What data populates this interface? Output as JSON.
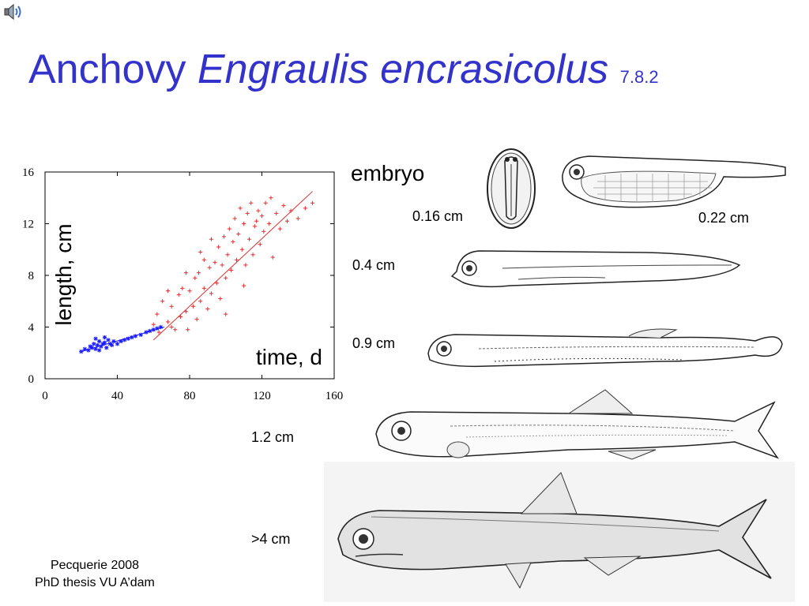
{
  "slide": {
    "title_common": "Anchovy",
    "title_scientific": "Engraulis encrasicolus",
    "slide_number": "7.8.2",
    "credit_line1": "Pecquerie 2008",
    "credit_line2": "PhD thesis VU A’dam"
  },
  "stages": {
    "embryo": "embryo",
    "egg_size": "0.16 cm",
    "larva_size": "0.22 cm",
    "s1": "0.4 cm",
    "s2": "0.9 cm",
    "s3": "1.2 cm",
    "adult": ">4 cm"
  },
  "colors": {
    "title": "#3333cc",
    "early": "#1a1aff",
    "late": "#e03030"
  },
  "icons": {
    "speaker": "speaker-icon"
  },
  "chart_data": {
    "type": "scatter",
    "title": "",
    "xlabel": "time, d",
    "ylabel": "length, cm",
    "xlim": [
      0,
      160
    ],
    "ylim": [
      0,
      16
    ],
    "xticks": [
      0,
      40,
      80,
      120,
      160
    ],
    "yticks": [
      0,
      4,
      8,
      12,
      16
    ],
    "grid": false,
    "series": [
      {
        "marker": "star",
        "color": "#1a1aff",
        "points": [
          [
            20,
            2.1
          ],
          [
            22,
            2.3
          ],
          [
            24,
            2.2
          ],
          [
            25,
            2.5
          ],
          [
            26,
            2.4
          ],
          [
            27,
            2.7
          ],
          [
            28,
            2.3
          ],
          [
            29,
            2.6
          ],
          [
            30,
            2.9
          ],
          [
            31,
            2.5
          ],
          [
            32,
            2.7
          ],
          [
            33,
            2.8
          ],
          [
            34,
            2.4
          ],
          [
            35,
            3.0
          ],
          [
            36,
            2.7
          ],
          [
            37,
            2.6
          ],
          [
            38,
            2.9
          ],
          [
            40,
            2.7
          ],
          [
            42,
            2.9
          ],
          [
            44,
            3.0
          ],
          [
            46,
            3.1
          ],
          [
            48,
            3.2
          ],
          [
            50,
            3.3
          ],
          [
            53,
            3.4
          ],
          [
            56,
            3.6
          ],
          [
            58,
            3.7
          ],
          [
            60,
            3.8
          ],
          [
            62,
            3.9
          ],
          [
            64,
            4.0
          ],
          [
            30,
            2.2
          ],
          [
            28,
            3.1
          ],
          [
            33,
            3.2
          ]
        ],
        "fit": [
          [
            20,
            2.1
          ],
          [
            66,
            4.0
          ]
        ]
      },
      {
        "marker": "plus",
        "color": "#e03030",
        "points": [
          [
            60,
            4.2
          ],
          [
            62,
            5.0
          ],
          [
            63,
            3.6
          ],
          [
            65,
            6.0
          ],
          [
            68,
            4.4
          ],
          [
            70,
            4.0
          ],
          [
            70,
            5.6
          ],
          [
            72,
            3.8
          ],
          [
            74,
            6.5
          ],
          [
            75,
            4.8
          ],
          [
            76,
            7.0
          ],
          [
            78,
            5.2
          ],
          [
            79,
            3.8
          ],
          [
            80,
            6.8
          ],
          [
            82,
            5.6
          ],
          [
            83,
            7.8
          ],
          [
            84,
            4.6
          ],
          [
            85,
            8.2
          ],
          [
            86,
            6.0
          ],
          [
            88,
            7.0
          ],
          [
            88,
            9.2
          ],
          [
            90,
            5.4
          ],
          [
            91,
            8.6
          ],
          [
            92,
            6.6
          ],
          [
            94,
            9.0
          ],
          [
            95,
            7.4
          ],
          [
            96,
            10.2
          ],
          [
            97,
            6.2
          ],
          [
            98,
            8.8
          ],
          [
            99,
            11.0
          ],
          [
            100,
            7.8
          ],
          [
            101,
            9.6
          ],
          [
            102,
            11.6
          ],
          [
            103,
            8.4
          ],
          [
            104,
            10.6
          ],
          [
            105,
            12.4
          ],
          [
            106,
            9.2
          ],
          [
            107,
            11.2
          ],
          [
            108,
            13.2
          ],
          [
            109,
            10.0
          ],
          [
            110,
            12.0
          ],
          [
            111,
            8.8
          ],
          [
            112,
            12.8
          ],
          [
            113,
            10.8
          ],
          [
            114,
            13.6
          ],
          [
            115,
            9.6
          ],
          [
            116,
            11.8
          ],
          [
            117,
            12.2
          ],
          [
            118,
            13.0
          ],
          [
            119,
            10.4
          ],
          [
            120,
            12.6
          ],
          [
            121,
            11.4
          ],
          [
            122,
            13.6
          ],
          [
            124,
            12.0
          ],
          [
            125,
            14.0
          ],
          [
            126,
            9.4
          ],
          [
            128,
            12.8
          ],
          [
            130,
            11.6
          ],
          [
            132,
            13.4
          ],
          [
            134,
            12.2
          ],
          [
            136,
            13.0
          ],
          [
            140,
            12.4
          ],
          [
            144,
            13.2
          ],
          [
            148,
            13.6
          ],
          [
            86,
            9.8
          ],
          [
            92,
            10.8
          ],
          [
            78,
            8.2
          ],
          [
            68,
            6.8
          ],
          [
            100,
            5.0
          ],
          [
            110,
            7.2
          ]
        ],
        "fit": [
          [
            60,
            3.0
          ],
          [
            148,
            14.5
          ]
        ]
      }
    ]
  }
}
